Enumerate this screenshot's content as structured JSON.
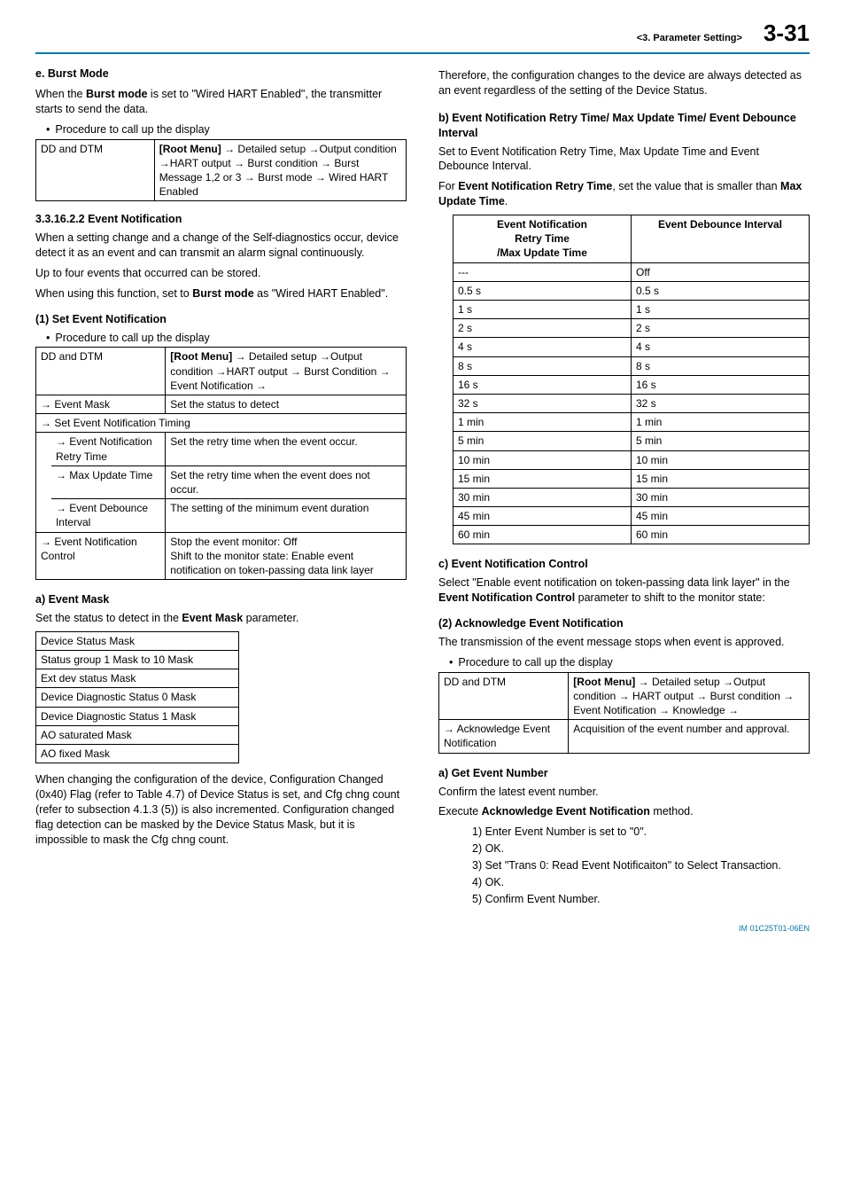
{
  "header": {
    "section": "<3.  Parameter Setting>",
    "page": "3-31"
  },
  "left": {
    "e_title": "e.    Burst Mode",
    "e_para": "When the <b>Burst mode</b> is set to \"Wired HART Enabled\", the transmitter starts to send the data.",
    "e_bullet": "Procedure to call up the display",
    "e_table_l": "DD and DTM",
    "e_table_r": "<b>[Root Menu]</b> → Detailed setup →Output condition →HART output → Burst condition → Burst Message 1,2 or 3 → Burst mode → Wired HART Enabled",
    "sec331622": "3.3.16.2.2 Event Notification",
    "evn_para1": "When a setting change and a change of the Self-diagnostics occur, device detect it as an event and can transmit an alarm signal continuously.",
    "evn_para2": "Up to four events that occurred can be stored.",
    "evn_para3": "When using this function, set to <b>Burst mode</b> as \"Wired HART Enabled\".",
    "one_title": "(1)   Set Event Notification",
    "one_bullet": "Procedure to call up the display",
    "t1": {
      "r1l": "DD and DTM",
      "r1r": "<b>[Root Menu]</b> → Detailed setup →Output condition →HART output → Burst Condition → Event Notification →",
      "r2l": "→ Event Mask",
      "r2r": "Set the status to detect",
      "r3": "→ Set Event Notification Timing",
      "r4l": "→ Event Notification Retry Time",
      "r4r": "Set the retry time when the event occur.",
      "r5l": "→ Max Update Time",
      "r5r": "Set the retry time when the event does not occur.",
      "r6l": "→ Event Debounce Interval",
      "r6r": "The setting of the minimum event duration",
      "r7l": "→ Event Notification Control",
      "r7r": "Stop the event monitor: Off\nShift to the monitor state: Enable event notification on token-passing data link layer"
    },
    "a_title": "a)    Event Mask",
    "a_para": "Set the status to detect in the <b>Event Mask</b> parameter.",
    "a_rows": [
      "Device Status Mask",
      "Status group 1 Mask to 10 Mask",
      "Ext dev status Mask",
      "Device Diagnostic Status 0 Mask",
      "Device Diagnostic Status 1 Mask",
      "AO saturated Mask",
      "AO fixed Mask"
    ],
    "a_para2": "When changing the configuration of the device, Configuration Changed (0x40) Flag (refer to Table 4.7) of Device Status is set, and Cfg chng count (refer to subsection 4.1.3 (5)) is also incremented. Configuration changed flag detection can be masked by the Device Status Mask, but it is impossible to mask the Cfg chng count."
  },
  "right": {
    "top_para": "Therefore, the configuration changes to the device are always detected as an event regardless of the setting of the Device Status.",
    "b_title": "b)    Event Notification Retry Time/ Max Update Time/ Event Debounce Interval",
    "b_para1": "Set to Event Notification Retry Time, Max Update Time and Event Debounce Interval.",
    "b_para2": "For <b>Event Notification Retry Time</b>, set the value that is smaller than <b>Max Update Time</b>.",
    "tbl_h1": "Event Notification Retry Time /Max Update Time",
    "tbl_h2": "Event Debounce Interval",
    "tbl_rows": [
      [
        "---",
        "Off"
      ],
      [
        "0.5 s",
        "0.5 s"
      ],
      [
        "1 s",
        "1 s"
      ],
      [
        "2 s",
        "2 s"
      ],
      [
        "4 s",
        "4 s"
      ],
      [
        "8 s",
        "8 s"
      ],
      [
        "16 s",
        "16 s"
      ],
      [
        "32 s",
        "32 s"
      ],
      [
        "1 min",
        "1 min"
      ],
      [
        "5 min",
        "5 min"
      ],
      [
        "10 min",
        "10 min"
      ],
      [
        "15 min",
        "15 min"
      ],
      [
        "30 min",
        "30 min"
      ],
      [
        "45 min",
        "45 min"
      ],
      [
        "60 min",
        "60 min"
      ]
    ],
    "c_title": "c)    Event Notification Control",
    "c_para": "Select \"Enable event notification on token-passing data link layer\" in the <b>Event Notification Control</b> parameter to shift to the monitor state:",
    "two_title": "(2)   Acknowledge Event Notification",
    "two_para": "The transmission of the event message stops when event is approved.",
    "two_bullet": "Procedure to call up the display",
    "t2": {
      "r1l": "DD and DTM",
      "r1r": "<b>[Root Menu]</b> → Detailed setup →Output condition → HART output → Burst condition → Event Notification → Knowledge →",
      "r2l": "→ Acknowledge Event Notification",
      "r2r": "Acquisition of the event number and approval."
    },
    "ra_title": "a)    Get Event Number",
    "ra_para1": "Confirm the latest event number.",
    "ra_para2": "Execute <b>Acknowledge Event Notification</b> method.",
    "steps": [
      "1) Enter Event Number is set to \"0\".",
      "2) OK.",
      "3) Set \"Trans 0: Read Event Notificaiton\" to Select Transaction.",
      "4) OK.",
      "5) Confirm Event Number."
    ]
  },
  "footer": "IM 01C25T01-06EN"
}
